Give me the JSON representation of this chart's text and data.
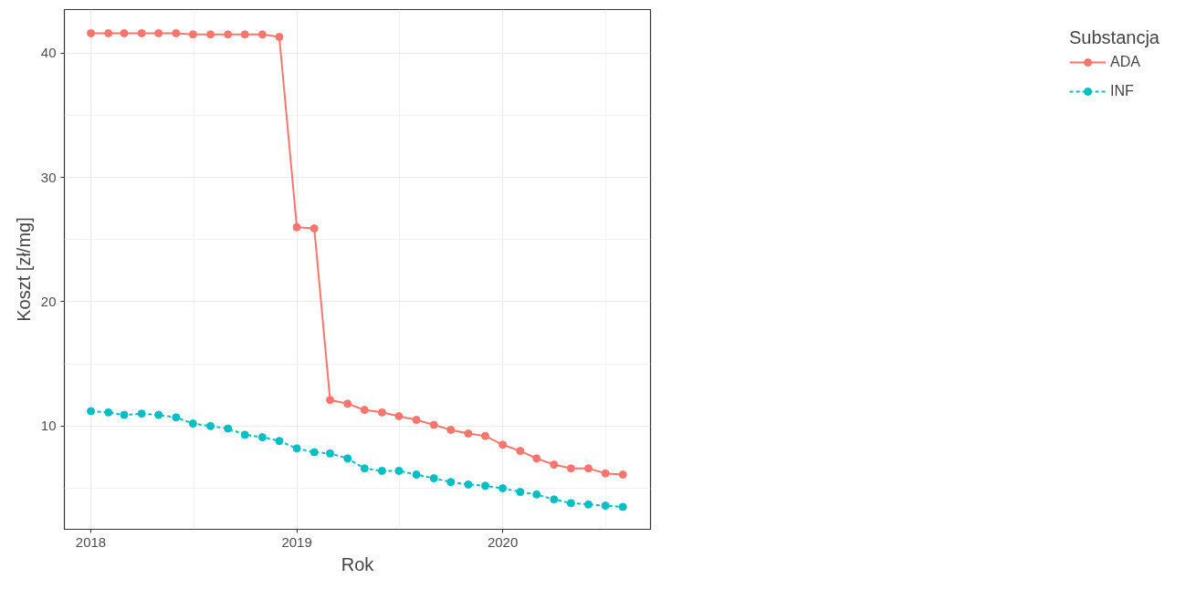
{
  "chart_data": {
    "type": "line",
    "xlabel": "Rok",
    "ylabel": "Koszt [zł/mg]",
    "legend_title": "Substancja",
    "legend": "right",
    "grid": true,
    "marker": "circle",
    "x": [
      "2018-01",
      "2018-02",
      "2018-03",
      "2018-04",
      "2018-05",
      "2018-06",
      "2018-07",
      "2018-08",
      "2018-09",
      "2018-10",
      "2018-11",
      "2018-12",
      "2019-01",
      "2019-02",
      "2019-03",
      "2019-04",
      "2019-05",
      "2019-06",
      "2019-07",
      "2019-08",
      "2019-09",
      "2019-10",
      "2019-11",
      "2019-12",
      "2020-01",
      "2020-02",
      "2020-03",
      "2020-04",
      "2020-05",
      "2020-06",
      "2020-07",
      "2020-08"
    ],
    "xlim": [
      "2017-11-15",
      "2020-09-19"
    ],
    "xticks": [
      "2018",
      "2019",
      "2020"
    ],
    "ylim": [
      1.7,
      43.5
    ],
    "yticks": [
      10,
      20,
      30,
      40
    ],
    "series": [
      {
        "name": "ADA",
        "color": "#f8766d",
        "line_style": "solid",
        "values": [
          41.6,
          41.6,
          41.6,
          41.6,
          41.6,
          41.6,
          41.5,
          41.5,
          41.5,
          41.5,
          41.5,
          41.3,
          26.0,
          25.9,
          12.1,
          11.8,
          11.3,
          11.1,
          10.8,
          10.5,
          10.1,
          9.7,
          9.4,
          9.2,
          8.5,
          8.0,
          7.4,
          6.9,
          6.6,
          6.6,
          6.2,
          6.1
        ]
      },
      {
        "name": "INF",
        "color": "#00bfc4",
        "line_style": "dashed",
        "values": [
          11.2,
          11.1,
          10.9,
          11.0,
          10.9,
          10.7,
          10.2,
          10.0,
          9.8,
          9.3,
          9.1,
          8.8,
          8.2,
          7.9,
          7.8,
          7.4,
          6.6,
          6.4,
          6.4,
          6.1,
          5.8,
          5.5,
          5.3,
          5.2,
          5.0,
          4.7,
          4.5,
          4.1,
          3.8,
          3.7,
          3.6,
          3.5
        ]
      }
    ]
  }
}
